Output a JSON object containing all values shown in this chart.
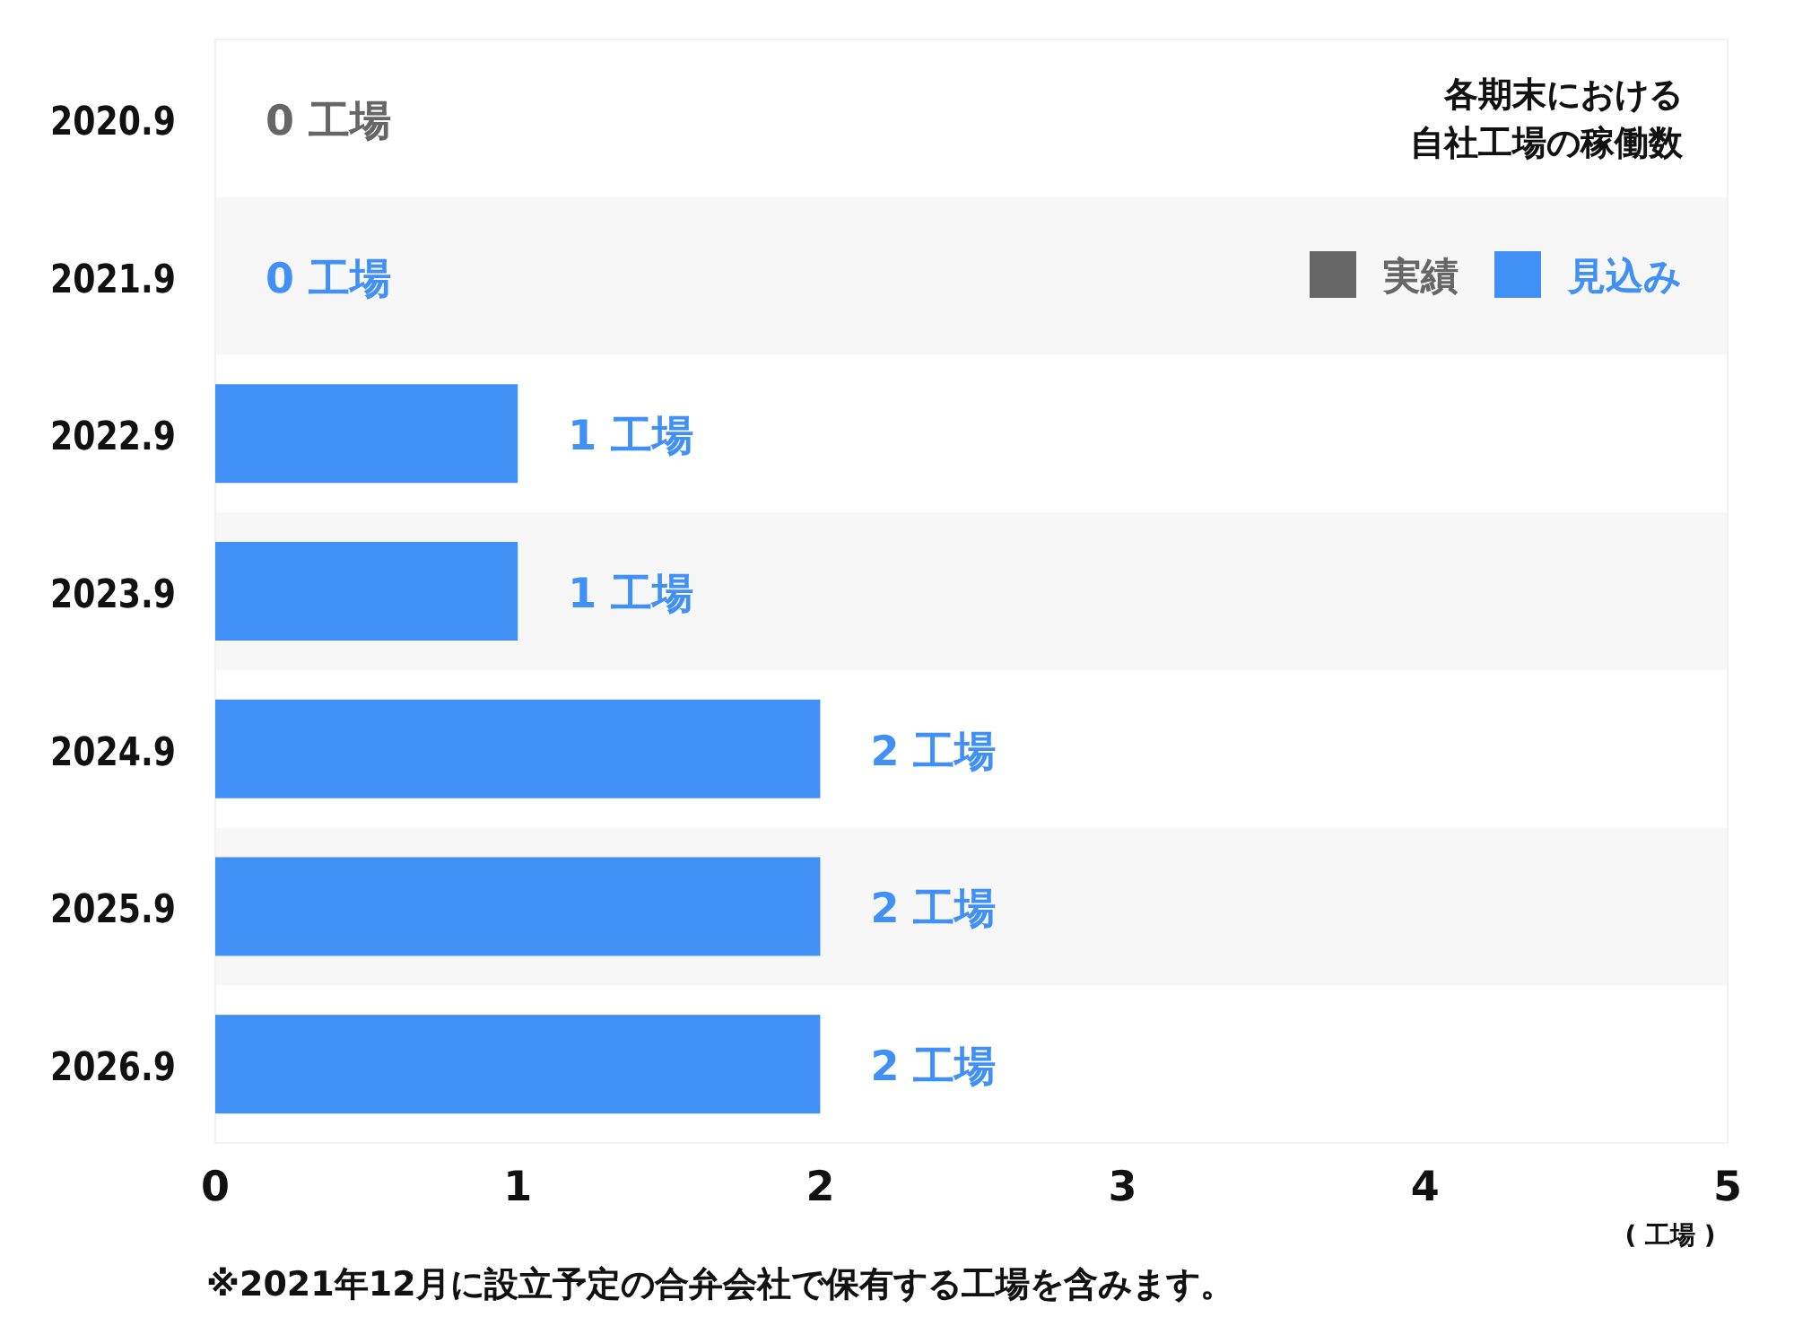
{
  "chart_data": {
    "type": "bar",
    "orientation": "horizontal",
    "categories": [
      "2020.9",
      "2021.9",
      "2022.9",
      "2023.9",
      "2024.9",
      "2025.9",
      "2026.9"
    ],
    "series": [
      {
        "name": "実績",
        "color": "#666666",
        "values": [
          0,
          null,
          null,
          null,
          null,
          null,
          null
        ],
        "value_labels": [
          "0 工場",
          null,
          null,
          null,
          null,
          null,
          null
        ]
      },
      {
        "name": "見込み",
        "color": "#4190f5",
        "values": [
          null,
          0,
          1,
          1,
          2,
          2,
          2
        ],
        "value_labels": [
          null,
          "0 工場",
          "1 工場",
          "1 工場",
          "2 工場",
          "2 工場",
          "2 工場"
        ]
      }
    ],
    "xlim": [
      0,
      5
    ],
    "xticks": [
      0,
      1,
      2,
      3,
      4,
      5
    ],
    "xlabel": "( 工場 )",
    "bands": [
      {
        "axis": "y",
        "from": "2021.9",
        "to": "2021.9",
        "color": "#f7f7f7"
      },
      {
        "axis": "y",
        "from": "2023.9",
        "to": "2023.9",
        "color": "#f7f7f7"
      },
      {
        "axis": "y",
        "from": "2025.9",
        "to": "2025.9",
        "color": "#f7f7f7"
      }
    ],
    "legend": "top right",
    "grid": false,
    "annotations": [
      "各期末における",
      "自社工場の稼働数",
      "※2021年12月に設立予定の合弁会社で保有する工場を含みます。"
    ]
  }
}
